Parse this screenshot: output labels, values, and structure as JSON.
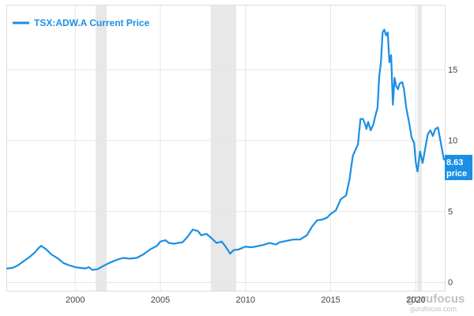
{
  "chart_data": {
    "type": "line",
    "legend": {
      "label": "TSX:ADW.A Current Price",
      "placement": "top-left"
    },
    "series": [
      {
        "name": "TSX:ADW.A Current Price",
        "color": "#1a8fe3",
        "points": [
          [
            1996.0,
            0.95
          ],
          [
            1996.3,
            1.0
          ],
          [
            1996.6,
            1.15
          ],
          [
            1997.0,
            1.5
          ],
          [
            1997.3,
            1.75
          ],
          [
            1997.6,
            2.05
          ],
          [
            1997.85,
            2.4
          ],
          [
            1998.0,
            2.55
          ],
          [
            1998.3,
            2.3
          ],
          [
            1998.6,
            1.95
          ],
          [
            1999.0,
            1.65
          ],
          [
            1999.3,
            1.35
          ],
          [
            1999.6,
            1.2
          ],
          [
            2000.0,
            1.05
          ],
          [
            2000.3,
            1.0
          ],
          [
            2000.6,
            0.95
          ],
          [
            2000.8,
            1.05
          ],
          [
            2001.0,
            0.85
          ],
          [
            2001.3,
            0.9
          ],
          [
            2001.6,
            1.1
          ],
          [
            2002.0,
            1.35
          ],
          [
            2002.4,
            1.55
          ],
          [
            2002.8,
            1.7
          ],
          [
            2003.2,
            1.65
          ],
          [
            2003.6,
            1.7
          ],
          [
            2004.0,
            1.95
          ],
          [
            2004.4,
            2.3
          ],
          [
            2004.8,
            2.55
          ],
          [
            2005.0,
            2.85
          ],
          [
            2005.3,
            2.95
          ],
          [
            2005.5,
            2.75
          ],
          [
            2005.8,
            2.7
          ],
          [
            2006.0,
            2.75
          ],
          [
            2006.3,
            2.8
          ],
          [
            2006.6,
            3.2
          ],
          [
            2006.9,
            3.7
          ],
          [
            2007.2,
            3.6
          ],
          [
            2007.4,
            3.3
          ],
          [
            2007.7,
            3.4
          ],
          [
            2008.0,
            3.1
          ],
          [
            2008.3,
            2.75
          ],
          [
            2008.6,
            2.85
          ],
          [
            2008.8,
            2.55
          ],
          [
            2009.1,
            2.0
          ],
          [
            2009.3,
            2.25
          ],
          [
            2009.6,
            2.3
          ],
          [
            2010.0,
            2.5
          ],
          [
            2010.3,
            2.45
          ],
          [
            2010.6,
            2.5
          ],
          [
            2011.0,
            2.6
          ],
          [
            2011.4,
            2.75
          ],
          [
            2011.8,
            2.65
          ],
          [
            2012.0,
            2.8
          ],
          [
            2012.4,
            2.9
          ],
          [
            2012.8,
            3.0
          ],
          [
            2013.2,
            3.0
          ],
          [
            2013.6,
            3.3
          ],
          [
            2013.9,
            3.9
          ],
          [
            2014.2,
            4.35
          ],
          [
            2014.5,
            4.4
          ],
          [
            2014.8,
            4.55
          ],
          [
            2015.0,
            4.8
          ],
          [
            2015.3,
            5.05
          ],
          [
            2015.6,
            5.85
          ],
          [
            2015.9,
            6.1
          ],
          [
            2016.1,
            7.2
          ],
          [
            2016.3,
            8.9
          ],
          [
            2016.45,
            9.3
          ],
          [
            2016.6,
            9.7
          ],
          [
            2016.75,
            11.5
          ],
          [
            2016.9,
            11.5
          ],
          [
            2017.0,
            11.2
          ],
          [
            2017.1,
            10.8
          ],
          [
            2017.2,
            11.3
          ],
          [
            2017.35,
            10.7
          ],
          [
            2017.5,
            11.1
          ],
          [
            2017.6,
            11.6
          ],
          [
            2017.75,
            12.3
          ],
          [
            2017.85,
            14.5
          ],
          [
            2017.95,
            15.5
          ],
          [
            2018.05,
            17.6
          ],
          [
            2018.15,
            17.8
          ],
          [
            2018.25,
            17.4
          ],
          [
            2018.35,
            17.6
          ],
          [
            2018.45,
            15.5
          ],
          [
            2018.55,
            16.0
          ],
          [
            2018.65,
            12.5
          ],
          [
            2018.75,
            14.4
          ],
          [
            2018.85,
            13.8
          ],
          [
            2018.95,
            13.6
          ],
          [
            2019.05,
            14.0
          ],
          [
            2019.2,
            14.1
          ],
          [
            2019.3,
            13.6
          ],
          [
            2019.45,
            12.2
          ],
          [
            2019.6,
            11.3
          ],
          [
            2019.75,
            10.2
          ],
          [
            2019.9,
            9.8
          ],
          [
            2020.0,
            8.4
          ],
          [
            2020.1,
            7.8
          ],
          [
            2020.25,
            9.2
          ],
          [
            2020.4,
            8.4
          ],
          [
            2020.55,
            9.4
          ],
          [
            2020.7,
            10.4
          ],
          [
            2020.85,
            10.7
          ],
          [
            2021.0,
            10.3
          ],
          [
            2021.15,
            10.8
          ],
          [
            2021.3,
            10.9
          ],
          [
            2021.5,
            9.6
          ],
          [
            2021.65,
            8.63
          ]
        ]
      }
    ],
    "xlim": [
      1996.0,
      2021.7
    ],
    "ylim": [
      0,
      19.5
    ],
    "x_ticks": [
      2000,
      2005,
      2010,
      2015,
      2020
    ],
    "y_ticks": [
      0,
      5,
      10,
      15
    ],
    "recession_bands": [
      [
        2001.2,
        2001.85
      ],
      [
        2007.95,
        2009.45
      ],
      [
        2020.1,
        2020.35
      ]
    ],
    "grid": true,
    "current_value": {
      "value": "8.63",
      "label": "price",
      "color": "#1a8fe3"
    },
    "watermark": {
      "main": "gurufocus",
      "sub": "gurufocus.com"
    }
  }
}
